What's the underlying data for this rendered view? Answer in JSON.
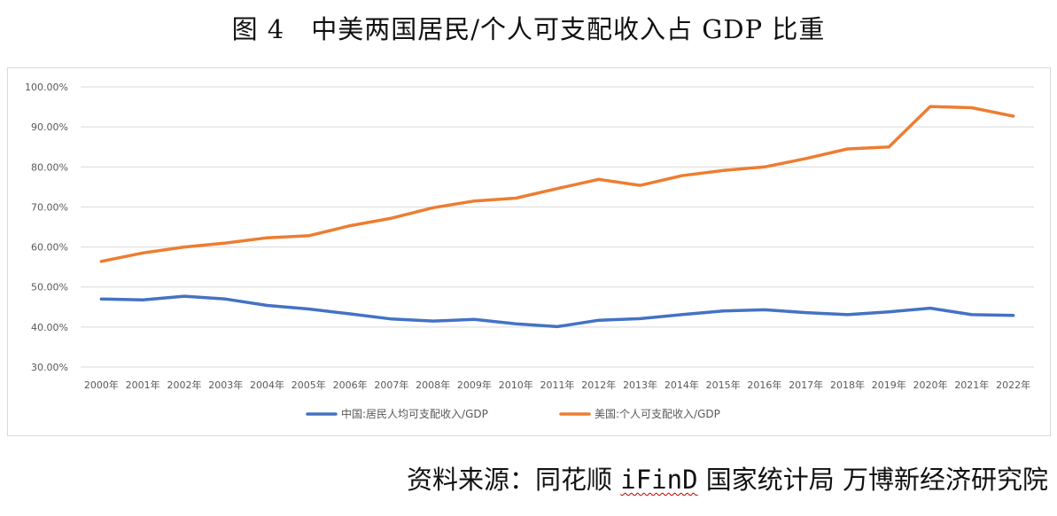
{
  "figure": {
    "title": "图 4　中美两国居民/个人可支配收入占 GDP 比重",
    "source_prefix": "资料来源：同花顺 ",
    "source_ifind": "iFinD",
    "source_suffix": " 国家统计局 万博新经济研究院"
  },
  "chart_data": {
    "type": "line",
    "title": "",
    "xlabel": "",
    "ylabel": "",
    "categories": [
      "2000年",
      "2001年",
      "2002年",
      "2003年",
      "2004年",
      "2005年",
      "2006年",
      "2007年",
      "2008年",
      "2009年",
      "2010年",
      "2011年",
      "2012年",
      "2013年",
      "2014年",
      "2015年",
      "2016年",
      "2017年",
      "2018年",
      "2019年",
      "2020年",
      "2021年",
      "2022年"
    ],
    "yticks": [
      "30.00%",
      "40.00%",
      "50.00%",
      "60.00%",
      "70.00%",
      "80.00%",
      "90.00%",
      "100.00%"
    ],
    "ylim": [
      30,
      100
    ],
    "grid": true,
    "legend_position": "bottom",
    "series": [
      {
        "name": "中国:居民人均可支配收入/GDP",
        "color": "#4472C4",
        "values": [
          47.0,
          46.8,
          47.7,
          47.0,
          45.4,
          44.5,
          43.3,
          42.0,
          41.5,
          41.9,
          40.8,
          40.1,
          41.7,
          42.1,
          43.1,
          44.0,
          44.3,
          43.6,
          43.1,
          43.8,
          44.7,
          43.1,
          42.9
        ]
      },
      {
        "name": "美国:个人可支配收入/GDP",
        "color": "#ED7D31",
        "values": [
          56.4,
          58.5,
          60.0,
          61.0,
          62.3,
          62.8,
          65.3,
          67.2,
          69.8,
          71.5,
          72.2,
          74.6,
          76.9,
          75.4,
          77.8,
          79.1,
          80.0,
          82.1,
          84.5,
          85.0,
          95.1,
          94.8,
          92.7
        ]
      }
    ]
  }
}
